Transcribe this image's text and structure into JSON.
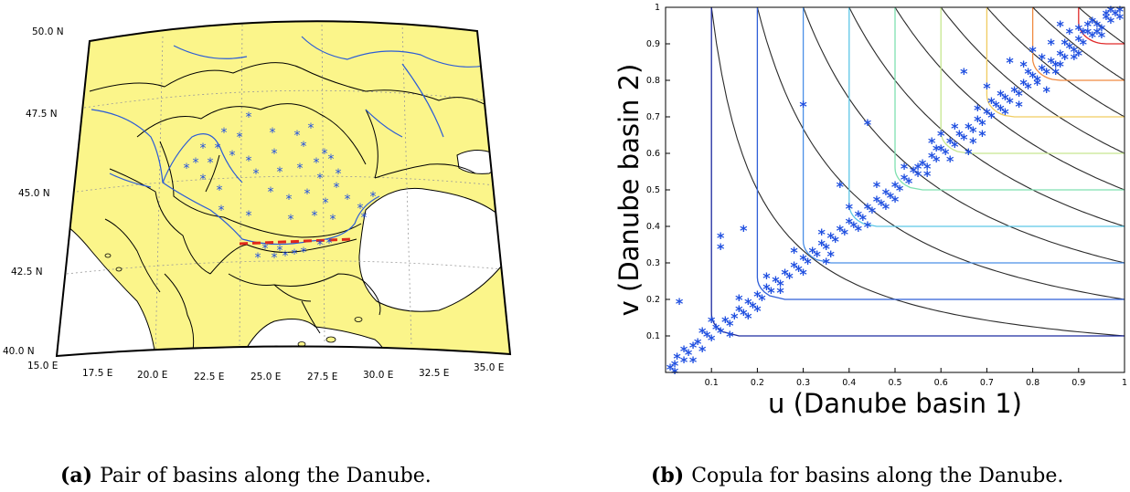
{
  "figure_a": {
    "caption_label": "(a)",
    "caption_text": "Pair of basins along the Danube.",
    "lat_labels": [
      "50.0",
      "47.5",
      "45.0",
      "42.5",
      "40.0"
    ],
    "lat_hemisphere": "N",
    "lon_labels": [
      "15.0",
      "17.5",
      "20.0",
      "22.5",
      "25.0",
      "27.5",
      "30.0",
      "32.5",
      "35.0"
    ],
    "lon_hemisphere": "E",
    "colors": {
      "land": "#fbf58a",
      "sea": "#ffffff",
      "river": "#2b5cd6",
      "station": "#1f4fe0",
      "pair_line": "#e0281a"
    }
  },
  "figure_b": {
    "caption_label": "(b)",
    "caption_text": "Copula for basins along the Danube."
  },
  "chart_data": {
    "type": "scatter",
    "xlabel": "u (Danube basin 1)",
    "ylabel": "v (Danube basin 2)",
    "xlim": [
      0,
      1
    ],
    "ylim": [
      0,
      1
    ],
    "xticks": [
      "0.1",
      "0.2",
      "0.3",
      "0.4",
      "0.5",
      "0.6",
      "0.7",
      "0.8",
      "0.9",
      "1"
    ],
    "yticks": [
      "0.1",
      "0.2",
      "0.3",
      "0.4",
      "0.5",
      "0.6",
      "0.7",
      "0.8",
      "0.9",
      "1"
    ],
    "marker": "*",
    "marker_color": "#1f4fe0",
    "contour_levels": [
      0.1,
      0.2,
      0.3,
      0.4,
      0.5,
      0.6,
      0.7,
      0.8,
      0.9
    ],
    "contour_colors": [
      "#1c2aa0",
      "#2f5fd8",
      "#4a8fe8",
      "#5cc6e6",
      "#7fe0b0",
      "#c6e690",
      "#f0cc60",
      "#f08a40",
      "#e02a2a"
    ],
    "grid": false,
    "points_in": [
      [
        0.01,
        0.01
      ],
      [
        0.02,
        0.02
      ],
      [
        0.025,
        0.04
      ],
      [
        0.04,
        0.03
      ],
      [
        0.05,
        0.05
      ],
      [
        0.06,
        0.07
      ],
      [
        0.07,
        0.08
      ],
      [
        0.08,
        0.06
      ],
      [
        0.09,
        0.1
      ],
      [
        0.1,
        0.09
      ],
      [
        0.11,
        0.12
      ],
      [
        0.12,
        0.11
      ],
      [
        0.13,
        0.14
      ],
      [
        0.14,
        0.13
      ],
      [
        0.15,
        0.15
      ],
      [
        0.16,
        0.17
      ],
      [
        0.17,
        0.16
      ],
      [
        0.18,
        0.19
      ],
      [
        0.19,
        0.18
      ],
      [
        0.2,
        0.21
      ],
      [
        0.21,
        0.2
      ],
      [
        0.22,
        0.23
      ],
      [
        0.23,
        0.22
      ],
      [
        0.24,
        0.25
      ],
      [
        0.25,
        0.24
      ],
      [
        0.26,
        0.27
      ],
      [
        0.27,
        0.26
      ],
      [
        0.28,
        0.29
      ],
      [
        0.29,
        0.28
      ],
      [
        0.3,
        0.31
      ],
      [
        0.31,
        0.3
      ],
      [
        0.32,
        0.33
      ],
      [
        0.33,
        0.32
      ],
      [
        0.34,
        0.35
      ],
      [
        0.35,
        0.34
      ],
      [
        0.36,
        0.37
      ],
      [
        0.37,
        0.36
      ],
      [
        0.38,
        0.39
      ],
      [
        0.39,
        0.38
      ],
      [
        0.4,
        0.41
      ],
      [
        0.41,
        0.4
      ],
      [
        0.42,
        0.43
      ],
      [
        0.43,
        0.42
      ],
      [
        0.44,
        0.45
      ],
      [
        0.45,
        0.44
      ],
      [
        0.46,
        0.47
      ],
      [
        0.47,
        0.46
      ],
      [
        0.48,
        0.49
      ],
      [
        0.49,
        0.48
      ],
      [
        0.5,
        0.51
      ],
      [
        0.51,
        0.5
      ],
      [
        0.52,
        0.53
      ],
      [
        0.53,
        0.52
      ],
      [
        0.54,
        0.55
      ],
      [
        0.55,
        0.54
      ],
      [
        0.56,
        0.57
      ],
      [
        0.57,
        0.56
      ],
      [
        0.58,
        0.59
      ],
      [
        0.59,
        0.58
      ],
      [
        0.6,
        0.61
      ],
      [
        0.61,
        0.6
      ],
      [
        0.62,
        0.63
      ],
      [
        0.63,
        0.62
      ],
      [
        0.64,
        0.65
      ],
      [
        0.65,
        0.64
      ],
      [
        0.66,
        0.67
      ],
      [
        0.67,
        0.66
      ],
      [
        0.68,
        0.69
      ],
      [
        0.69,
        0.68
      ],
      [
        0.7,
        0.71
      ],
      [
        0.71,
        0.7
      ],
      [
        0.72,
        0.73
      ],
      [
        0.73,
        0.72
      ],
      [
        0.74,
        0.75
      ],
      [
        0.75,
        0.74
      ],
      [
        0.76,
        0.77
      ],
      [
        0.77,
        0.76
      ],
      [
        0.78,
        0.79
      ],
      [
        0.79,
        0.78
      ],
      [
        0.8,
        0.81
      ],
      [
        0.81,
        0.8
      ],
      [
        0.82,
        0.83
      ],
      [
        0.83,
        0.82
      ],
      [
        0.84,
        0.85
      ],
      [
        0.85,
        0.84
      ],
      [
        0.86,
        0.87
      ],
      [
        0.87,
        0.86
      ],
      [
        0.88,
        0.89
      ],
      [
        0.89,
        0.88
      ],
      [
        0.9,
        0.91
      ],
      [
        0.91,
        0.9
      ],
      [
        0.92,
        0.93
      ],
      [
        0.93,
        0.92
      ],
      [
        0.94,
        0.95
      ],
      [
        0.95,
        0.94
      ],
      [
        0.96,
        0.97
      ],
      [
        0.97,
        0.96
      ],
      [
        0.98,
        0.98
      ],
      [
        0.99,
        0.99
      ],
      [
        0.12,
        0.37
      ],
      [
        0.12,
        0.34
      ],
      [
        0.17,
        0.39
      ],
      [
        0.03,
        0.19
      ],
      [
        0.3,
        0.73
      ],
      [
        0.44,
        0.68
      ],
      [
        0.55,
        0.56
      ],
      [
        0.65,
        0.82
      ],
      [
        0.75,
        0.85
      ],
      [
        0.73,
        0.76
      ],
      [
        0.83,
        0.77
      ],
      [
        0.86,
        0.95
      ],
      [
        0.88,
        0.93
      ],
      [
        0.9,
        0.87
      ],
      [
        0.2,
        0.17
      ],
      [
        0.08,
        0.11
      ],
      [
        0.35,
        0.3
      ],
      [
        0.38,
        0.51
      ],
      [
        0.58,
        0.63
      ],
      [
        0.6,
        0.65
      ],
      [
        0.62,
        0.58
      ],
      [
        0.66,
        0.6
      ],
      [
        0.68,
        0.72
      ],
      [
        0.7,
        0.78
      ],
      [
        0.78,
        0.84
      ],
      [
        0.8,
        0.88
      ],
      [
        0.82,
        0.86
      ],
      [
        0.84,
        0.9
      ],
      [
        0.86,
        0.84
      ],
      [
        0.9,
        0.94
      ],
      [
        0.92,
        0.95
      ],
      [
        0.94,
        0.93
      ],
      [
        0.96,
        0.98
      ],
      [
        0.4,
        0.45
      ],
      [
        0.42,
        0.39
      ],
      [
        0.46,
        0.51
      ],
      [
        0.48,
        0.45
      ],
      [
        0.52,
        0.56
      ],
      [
        0.5,
        0.47
      ],
      [
        0.3,
        0.27
      ],
      [
        0.28,
        0.33
      ],
      [
        0.25,
        0.22
      ],
      [
        0.22,
        0.26
      ],
      [
        0.18,
        0.15
      ],
      [
        0.16,
        0.2
      ],
      [
        0.14,
        0.1
      ],
      [
        0.1,
        0.14
      ],
      [
        0.06,
        0.03
      ],
      [
        0.04,
        0.06
      ],
      [
        0.02,
        0.0
      ],
      [
        0.36,
        0.32
      ],
      [
        0.34,
        0.38
      ],
      [
        0.44,
        0.4
      ],
      [
        0.57,
        0.54
      ],
      [
        0.59,
        0.61
      ],
      [
        0.63,
        0.67
      ],
      [
        0.67,
        0.63
      ],
      [
        0.69,
        0.65
      ],
      [
        0.71,
        0.74
      ],
      [
        0.74,
        0.71
      ],
      [
        0.77,
        0.73
      ],
      [
        0.79,
        0.82
      ],
      [
        0.81,
        0.79
      ],
      [
        0.85,
        0.82
      ],
      [
        0.87,
        0.9
      ],
      [
        0.89,
        0.86
      ],
      [
        0.91,
        0.93
      ],
      [
        0.93,
        0.96
      ],
      [
        0.95,
        0.92
      ],
      [
        0.97,
        0.99
      ],
      [
        0.99,
        0.97
      ]
    ]
  }
}
